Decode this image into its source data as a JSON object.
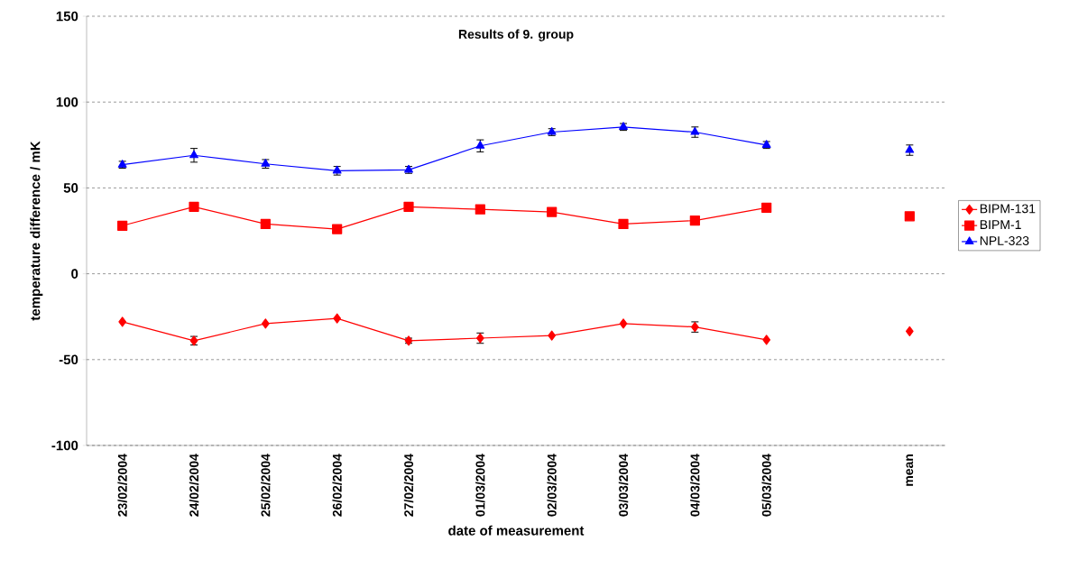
{
  "chart_data": {
    "type": "line",
    "title": "Results of 9. group",
    "xlabel": "date of measurement",
    "ylabel": "temperature difference / mK",
    "categories": [
      "23/02/2004",
      "24/02/2004",
      "25/02/2004",
      "26/02/2004",
      "27/02/2004",
      "01/03/2004",
      "02/03/2004",
      "03/03/2004",
      "04/03/2004",
      "05/03/2004",
      null,
      "mean"
    ],
    "series": [
      {
        "name": "BIPM-131",
        "color": "#ff0000",
        "marker": "diamond",
        "values": [
          -28,
          -39,
          -29,
          -26,
          -39,
          -37.5,
          -36,
          -29,
          -31,
          -38.5,
          null,
          -33.5
        ],
        "errors": [
          null,
          2.5,
          null,
          null,
          1.5,
          3,
          null,
          null,
          3,
          null,
          null,
          null
        ]
      },
      {
        "name": "BIPM-1",
        "color": "#ff0000",
        "marker": "square",
        "values": [
          28,
          39,
          29,
          26,
          39,
          37.5,
          36,
          29,
          31,
          38.5,
          null,
          33.5
        ]
      },
      {
        "name": "NPL-323",
        "color": "#0000ff",
        "marker": "triangle",
        "values": [
          63.5,
          69,
          64,
          60,
          60.5,
          74.5,
          82.5,
          85.5,
          82.5,
          75,
          null,
          72
        ],
        "errors": [
          2,
          4,
          2.5,
          2.5,
          2,
          3.5,
          2,
          2,
          3,
          2,
          null,
          3
        ]
      }
    ],
    "ylim": [
      -100,
      150
    ],
    "yticks": [
      -100,
      -50,
      0,
      50,
      100,
      150
    ],
    "grid": "y",
    "legend": "right"
  }
}
